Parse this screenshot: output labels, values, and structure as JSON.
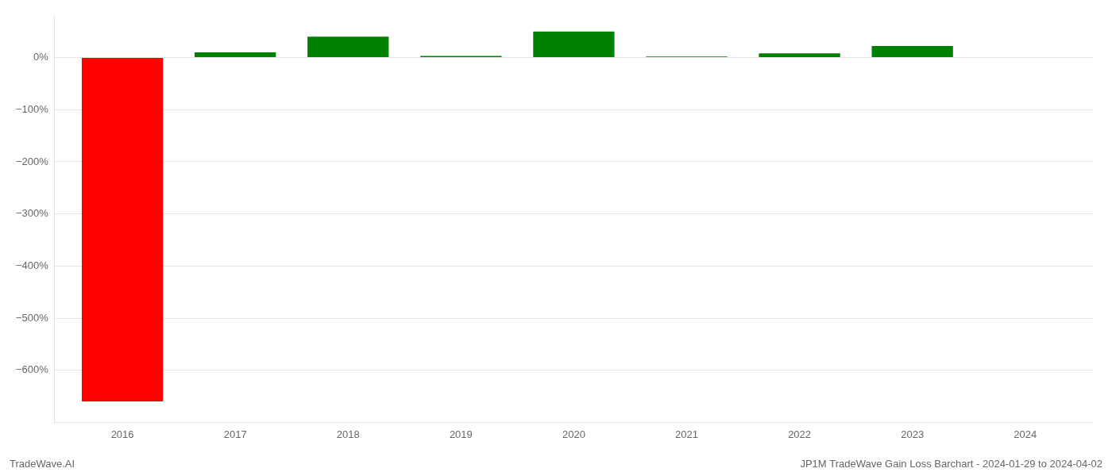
{
  "chart_data": {
    "type": "bar",
    "x": [
      2016,
      2017,
      2018,
      2019,
      2020,
      2021,
      2022,
      2023
    ],
    "values": [
      -660,
      10,
      40,
      3,
      50,
      2,
      8,
      22
    ],
    "colors": [
      "#ff0000",
      "#008000",
      "#008000",
      "#008000",
      "#008000",
      "#008000",
      "#008000",
      "#008000"
    ],
    "xlim": [
      2015.4,
      2024.6
    ],
    "xticks": [
      2016,
      2017,
      2018,
      2019,
      2020,
      2021,
      2022,
      2023,
      2024
    ],
    "ylim": [
      -700,
      80
    ],
    "yticks": [
      {
        "value": 0,
        "label": "0%"
      },
      {
        "value": -100,
        "label": "−100%"
      },
      {
        "value": -200,
        "label": "−200%"
      },
      {
        "value": -300,
        "label": "−300%"
      },
      {
        "value": -400,
        "label": "−400%"
      },
      {
        "value": -500,
        "label": "−500%"
      },
      {
        "value": -600,
        "label": "−600%"
      }
    ],
    "grid": "y",
    "annotations": [
      "TradeWave.AI",
      "JP1M TradeWave Gain Loss Barchart - 2024-01-29 to 2024-04-02"
    ]
  }
}
